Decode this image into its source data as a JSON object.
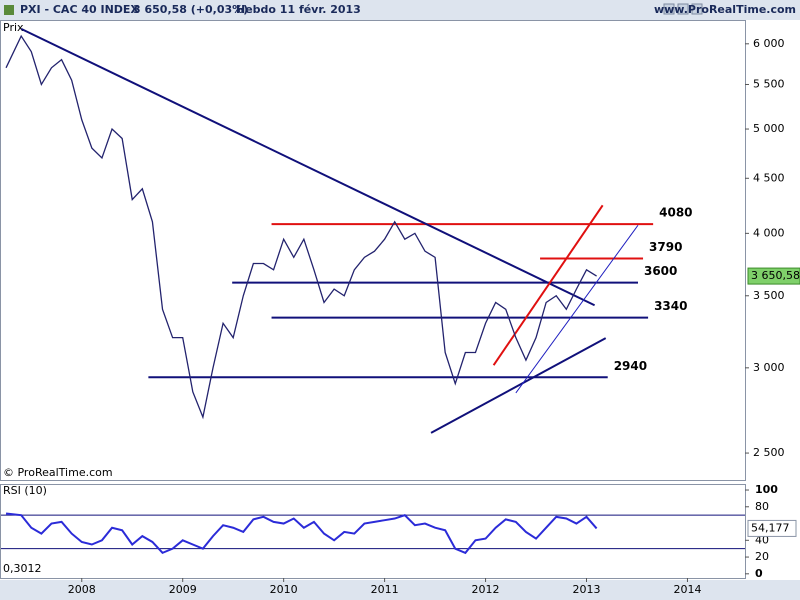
{
  "chart_data": {
    "type": "line",
    "title": "PXI - CAC 40 INDEX",
    "subtitle": "3 650,58 (+0,03%)",
    "period": "Hebdo  11 févr. 2013",
    "website": "www.ProRealTime.com",
    "copyright": "© ProRealTime.com",
    "price_label": "Prix",
    "log_scale": true,
    "x": [
      2007.25,
      2007.4,
      2007.5,
      2007.6,
      2007.7,
      2007.8,
      2007.9,
      2008.0,
      2008.1,
      2008.2,
      2008.3,
      2008.4,
      2008.5,
      2008.6,
      2008.7,
      2008.8,
      2008.9,
      2009.0,
      2009.1,
      2009.2,
      2009.3,
      2009.4,
      2009.5,
      2009.6,
      2009.7,
      2009.8,
      2009.9,
      2010.0,
      2010.1,
      2010.2,
      2010.3,
      2010.4,
      2010.5,
      2010.6,
      2010.7,
      2010.8,
      2010.9,
      2011.0,
      2011.1,
      2011.2,
      2011.3,
      2011.4,
      2011.5,
      2011.6,
      2011.7,
      2011.8,
      2011.9,
      2012.0,
      2012.1,
      2012.2,
      2012.3,
      2012.4,
      2012.5,
      2012.6,
      2012.7,
      2012.8,
      2012.9,
      2013.0,
      2013.1
    ],
    "series": [
      {
        "name": "CAC 40 INDEX",
        "color": "#23236e",
        "values": [
          5700,
          6100,
          5900,
          5500,
          5700,
          5800,
          5550,
          5100,
          4800,
          4700,
          5000,
          4900,
          4300,
          4400,
          4100,
          3400,
          3200,
          3200,
          2850,
          2700,
          3000,
          3300,
          3200,
          3500,
          3750,
          3750,
          3700,
          3950,
          3800,
          3950,
          3700,
          3450,
          3550,
          3500,
          3700,
          3800,
          3850,
          3950,
          4100,
          3950,
          4000,
          3850,
          3800,
          3100,
          2900,
          3100,
          3100,
          3300,
          3450,
          3400,
          3200,
          3050,
          3200,
          3450,
          3500,
          3400,
          3550,
          3700,
          3650.58
        ]
      }
    ],
    "last_value": 3650.58,
    "last_value_label": "3 650,58",
    "xlim": [
      2007.2,
      2014.57
    ],
    "xticks": [
      2008,
      2009,
      2010,
      2011,
      2012,
      2013,
      2014
    ],
    "ylim": [
      2360,
      6300
    ],
    "yticks": [
      {
        "value": 2500,
        "label": "2 500"
      },
      {
        "value": 3000,
        "label": "3 000"
      },
      {
        "value": 3500,
        "label": "3 500"
      },
      {
        "value": 4000,
        "label": "4 000"
      },
      {
        "value": 4500,
        "label": "4 500"
      },
      {
        "value": 5000,
        "label": "5 000"
      },
      {
        "value": 5500,
        "label": "5 500"
      },
      {
        "value": 6000,
        "label": "6 000"
      }
    ],
    "levels": [
      {
        "value": 4080,
        "x": [
          2009.88,
          2013.66
        ],
        "color": "#e01010"
      },
      {
        "value": 3790,
        "x": [
          2012.54,
          2013.56
        ],
        "color": "#e01010"
      },
      {
        "value": 3600,
        "x": [
          2009.49,
          2013.51
        ],
        "color": "#10107a"
      },
      {
        "value": 3340,
        "x": [
          2009.88,
          2013.61
        ],
        "color": "#10107a"
      },
      {
        "value": 2940,
        "x": [
          2008.66,
          2013.21
        ],
        "color": "#10107a"
      }
    ],
    "trendlines": [
      {
        "x": [
          2007.4,
          2013.08
        ],
        "y": [
          6195,
          3430
        ],
        "color": "#10107a"
      },
      {
        "x": [
          2011.46,
          2013.19
        ],
        "y": [
          2610,
          3197
        ],
        "color": "#10107a"
      },
      {
        "x": [
          2012.3,
          2013.51
        ],
        "y": [
          2843,
          4070
        ],
        "color": "#2020c0"
      },
      {
        "x": [
          2012.08,
          2013.16
        ],
        "y": [
          3017,
          4247
        ],
        "color": "#e01010"
      }
    ],
    "rsi": {
      "name": "RSI (10)",
      "color": "#2b2bd8",
      "values": [
        72,
        70,
        55,
        48,
        60,
        62,
        48,
        38,
        35,
        40,
        55,
        52,
        35,
        45,
        38,
        25,
        30,
        40,
        35,
        30,
        45,
        58,
        55,
        50,
        65,
        68,
        62,
        60,
        66,
        55,
        62,
        48,
        40,
        50,
        48,
        60,
        62,
        64,
        66,
        70,
        58,
        60,
        55,
        52,
        30,
        25,
        40,
        42,
        55,
        65,
        62,
        50,
        42,
        55,
        68,
        66,
        60,
        68,
        54.177
      ],
      "last_value": 54.177,
      "last_value_label": "54,177",
      "ylim": [
        -5,
        106
      ],
      "yticks": [
        0,
        20,
        40,
        80,
        100
      ],
      "levels": [
        70,
        30
      ],
      "note": "0,3012"
    }
  }
}
